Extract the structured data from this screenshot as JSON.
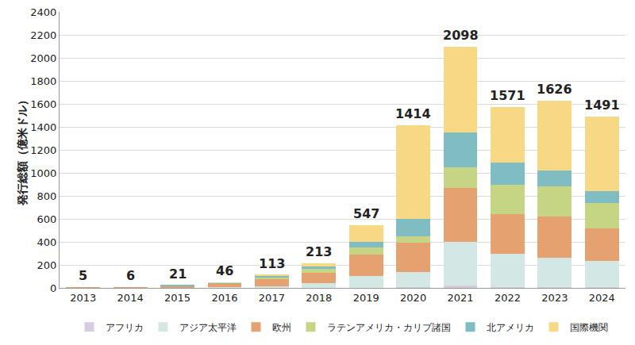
{
  "chart_data": {
    "type": "bar",
    "stacked": true,
    "grid": true,
    "legend": "bottom",
    "y_label": "発行総額（億米ドル）",
    "categories": [
      "2013",
      "2014",
      "2015",
      "2016",
      "2017",
      "2018",
      "2019",
      "2020",
      "2021",
      "2022",
      "2023",
      "2024"
    ],
    "series": [
      {
        "name": "アフリカ",
        "color": "#d9cce2",
        "values": [
          0,
          0,
          0,
          0,
          0,
          0,
          2,
          5,
          20,
          5,
          5,
          10
        ]
      },
      {
        "name": "アジア太平洋",
        "color": "#d3e7e5",
        "values": [
          1,
          1,
          3,
          8,
          15,
          40,
          100,
          130,
          380,
          295,
          255,
          225
        ]
      },
      {
        "name": "欧州",
        "color": "#e5a170",
        "values": [
          4,
          5,
          16,
          30,
          62,
          90,
          190,
          255,
          470,
          340,
          360,
          285
        ]
      },
      {
        "name": "ラテンアメリカ・カリブ諸国",
        "color": "#c5d583",
        "values": [
          0,
          0,
          1,
          3,
          15,
          35,
          60,
          60,
          180,
          260,
          265,
          215
        ]
      },
      {
        "name": "北アメリカ",
        "color": "#7fbdc2",
        "values": [
          0,
          0,
          1,
          3,
          15,
          20,
          50,
          150,
          300,
          190,
          135,
          105
        ]
      },
      {
        "name": "国際機関",
        "color": "#f7d884",
        "values": [
          0,
          0,
          0,
          2,
          6,
          28,
          145,
          814,
          748,
          481,
          606,
          651
        ]
      }
    ],
    "totals": [
      5,
      6,
      21,
      46,
      113,
      213,
      547,
      1414,
      2098,
      1571,
      1626,
      1491
    ],
    "ylim": [
      0,
      2400
    ],
    "yticks": [
      0,
      200,
      400,
      600,
      800,
      1000,
      1200,
      1400,
      1600,
      1800,
      2000,
      2200,
      2400
    ]
  }
}
